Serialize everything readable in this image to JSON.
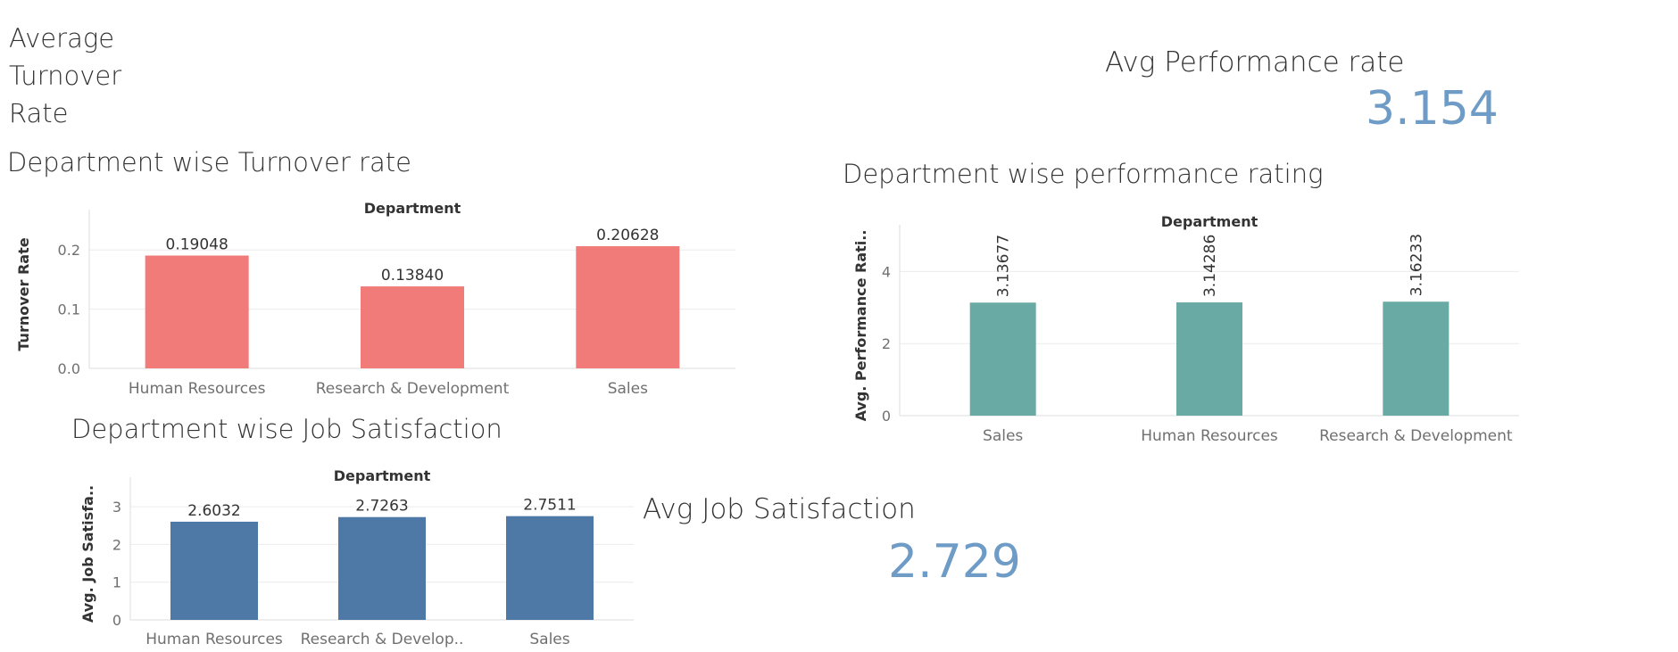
{
  "kpi_turnover": {
    "title_lines": [
      "Average",
      "Turnover",
      "Rate"
    ]
  },
  "kpi_performance": {
    "title": "Avg Performance rate",
    "value": "3.154"
  },
  "kpi_job_satisfaction": {
    "title": "Avg Job Satisfaction",
    "value": "2.729"
  },
  "colors": {
    "turnover": "#f07b79",
    "performance": "#6aaaa4",
    "satisfaction": "#4e79a7",
    "kpi_value": "#6e9cc7"
  },
  "chart_data": [
    {
      "id": "turnover",
      "type": "bar",
      "title": "Department wise Turnover rate",
      "column_header": "Department",
      "ylabel": "Turnover Rate",
      "categories": [
        "Human Resources",
        "Research & Development",
        "Sales"
      ],
      "values": [
        0.19048,
        0.1384,
        0.20628
      ],
      "data_labels": [
        "0.19048",
        "0.13840",
        "0.20628"
      ],
      "ylim": [
        0,
        0.25
      ],
      "yticks": [
        0.0,
        0.1,
        0.2
      ],
      "ytick_labels": [
        "0.0",
        "0.1",
        "0.2"
      ],
      "label_orientation": "horizontal",
      "grid": true
    },
    {
      "id": "performance",
      "type": "bar",
      "title": "Department wise performance rating",
      "column_header": "Department",
      "ylabel": "Avg. Performance Rati..",
      "categories": [
        "Sales",
        "Human Resources",
        "Research & Development"
      ],
      "values": [
        3.13677,
        3.14286,
        3.16233
      ],
      "data_labels": [
        "3.13677",
        "3.14286",
        "3.16233"
      ],
      "ylim": [
        0,
        5
      ],
      "yticks": [
        0,
        2,
        4
      ],
      "ytick_labels": [
        "0",
        "2",
        "4"
      ],
      "label_orientation": "vertical",
      "grid": true
    },
    {
      "id": "satisfaction",
      "type": "bar",
      "title": "Department wise Job Satisfaction",
      "column_header": "Department",
      "ylabel": "Avg. Job Satisfa..",
      "categories": [
        "Human Resources",
        "Research & Develop..",
        "Sales"
      ],
      "values": [
        2.6032,
        2.7263,
        2.7511
      ],
      "data_labels": [
        "2.6032",
        "2.7263",
        "2.7511"
      ],
      "ylim": [
        0,
        3.5
      ],
      "yticks": [
        0,
        1,
        2,
        3
      ],
      "ytick_labels": [
        "0",
        "1",
        "2",
        "3"
      ],
      "label_orientation": "horizontal",
      "grid": true
    }
  ]
}
